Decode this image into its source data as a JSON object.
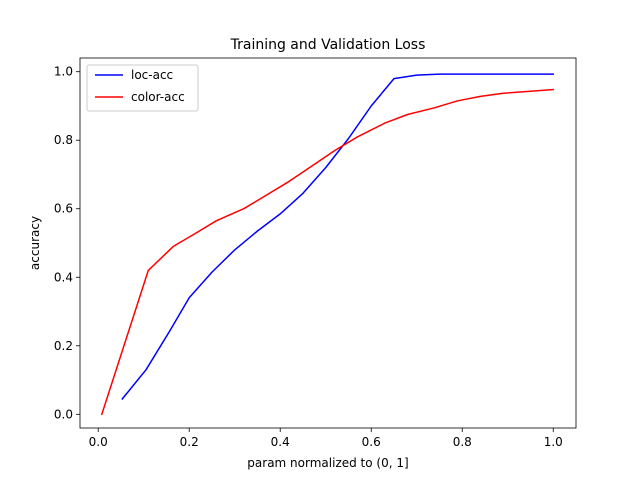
{
  "chart_data": {
    "type": "line",
    "title": "Training and Validation Loss",
    "xlabel": "param normalized to (0, 1]",
    "ylabel": "accuracy",
    "xlim": [
      -0.04,
      1.05
    ],
    "ylim": [
      -0.04,
      1.04
    ],
    "xticks": [
      0.0,
      0.2,
      0.4,
      0.6,
      0.8,
      1.0
    ],
    "xtick_labels": [
      "0.0",
      "0.2",
      "0.4",
      "0.6",
      "0.8",
      "1.0"
    ],
    "yticks": [
      0.0,
      0.2,
      0.4,
      0.6,
      0.8,
      1.0
    ],
    "ytick_labels": [
      "0.0",
      "0.2",
      "0.4",
      "0.6",
      "0.8",
      "1.0"
    ],
    "grid": false,
    "legend_position": "top-left",
    "series": [
      {
        "name": "loc-acc",
        "color": "#0000ff",
        "x": [
          0.053,
          0.105,
          0.158,
          0.2,
          0.25,
          0.3,
          0.35,
          0.4,
          0.45,
          0.5,
          0.55,
          0.6,
          0.65,
          0.7,
          0.75,
          0.8,
          0.85,
          0.9,
          0.95,
          1.0
        ],
        "y": [
          0.045,
          0.13,
          0.245,
          0.34,
          0.415,
          0.48,
          0.535,
          0.585,
          0.645,
          0.72,
          0.805,
          0.9,
          0.98,
          0.99,
          0.993,
          0.993,
          0.993,
          0.993,
          0.993,
          0.993
        ]
      },
      {
        "name": "color-acc",
        "color": "#ff0000",
        "x": [
          0.008,
          0.11,
          0.165,
          0.21,
          0.26,
          0.32,
          0.37,
          0.42,
          0.47,
          0.52,
          0.57,
          0.63,
          0.68,
          0.74,
          0.79,
          0.84,
          0.89,
          0.95,
          1.0
        ],
        "y": [
          0.0,
          0.42,
          0.49,
          0.525,
          0.565,
          0.6,
          0.64,
          0.68,
          0.725,
          0.77,
          0.81,
          0.85,
          0.875,
          0.895,
          0.915,
          0.928,
          0.937,
          0.943,
          0.948
        ]
      }
    ]
  }
}
